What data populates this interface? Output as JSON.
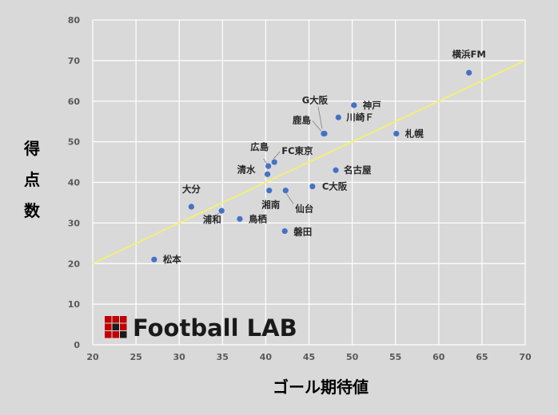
{
  "chart_data": {
    "type": "scatter",
    "xlabel": "ゴール期待値",
    "ylabel": "得点数",
    "xlim": [
      20,
      70
    ],
    "ylim": [
      0,
      80
    ],
    "x_ticks": [
      20,
      25,
      30,
      35,
      40,
      45,
      50,
      55,
      60,
      65,
      70
    ],
    "y_ticks": [
      0,
      10,
      20,
      30,
      40,
      50,
      60,
      70,
      80
    ],
    "grid": true,
    "point_color": "#4472c4",
    "trendline": {
      "color": "#f2ef7a",
      "from": [
        20,
        20
      ],
      "to": [
        70,
        70
      ]
    },
    "points": [
      {
        "label": "横浜FM",
        "x": 63.5,
        "y": 67
      },
      {
        "label": "神戸",
        "x": 50.2,
        "y": 59
      },
      {
        "label": "川崎Ｆ",
        "x": 48.4,
        "y": 56
      },
      {
        "label": "G大阪",
        "x": 46.8,
        "y": 52
      },
      {
        "label": "鹿島",
        "x": 46.7,
        "y": 52
      },
      {
        "label": "札幌",
        "x": 55.1,
        "y": 52
      },
      {
        "label": "FC東京",
        "x": 41.0,
        "y": 45
      },
      {
        "label": "広島",
        "x": 40.3,
        "y": 44
      },
      {
        "label": "清水",
        "x": 40.2,
        "y": 42
      },
      {
        "label": "名古屋",
        "x": 48.1,
        "y": 43
      },
      {
        "label": "C大阪",
        "x": 45.4,
        "y": 39
      },
      {
        "label": "湘南",
        "x": 40.4,
        "y": 38
      },
      {
        "label": "仙台",
        "x": 42.3,
        "y": 38
      },
      {
        "label": "大分",
        "x": 31.4,
        "y": 34
      },
      {
        "label": "浦和",
        "x": 34.9,
        "y": 33
      },
      {
        "label": "鳥栖",
        "x": 37.0,
        "y": 31
      },
      {
        "label": "磐田",
        "x": 42.2,
        "y": 28
      },
      {
        "label": "松本",
        "x": 27.1,
        "y": 21
      }
    ]
  },
  "logo": {
    "text": "Football LAB",
    "colors": [
      "#c00000",
      "#1a1a1a"
    ]
  }
}
